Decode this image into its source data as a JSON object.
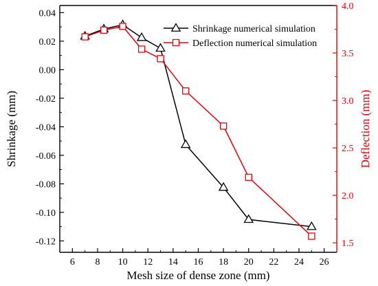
{
  "chart_data": {
    "type": "line",
    "xlabel": "Mesh size of dense zone (mm)",
    "ylabel_left": "Shrinkage (mm)",
    "ylabel_right": "Deflection (mm)",
    "xlim": [
      5,
      27
    ],
    "xticks": [
      6,
      8,
      10,
      12,
      14,
      16,
      18,
      20,
      22,
      24,
      26
    ],
    "ylim_left": [
      -0.128,
      0.045
    ],
    "yticks_left": [
      0.04,
      0.02,
      0.0,
      -0.02,
      -0.04,
      -0.06,
      -0.08,
      -0.1,
      -0.12
    ],
    "ytick_labels_left": [
      "0.04",
      "0.02",
      "0.00",
      "-0.02",
      "-0.04",
      "-0.06",
      "-0.08",
      "-0.10",
      "-0.12"
    ],
    "ylim_right": [
      1.4,
      4.0
    ],
    "yticks_right": [
      1.5,
      2.0,
      2.5,
      3.0,
      3.5,
      4.0
    ],
    "ytick_labels_right": [
      "1.5",
      "2.0",
      "2.5",
      "3.0",
      "3.5",
      "4.0"
    ],
    "grid": false,
    "legend_position": "top-right",
    "series": [
      {
        "name": "Shrinkage numerical simulation",
        "axis": "left",
        "marker": "triangle",
        "color": "#000000",
        "x": [
          7,
          8.5,
          10,
          11.5,
          13,
          15,
          18,
          20,
          25
        ],
        "y": [
          0.0235,
          0.0285,
          0.0315,
          0.0225,
          0.015,
          -0.0525,
          -0.0825,
          -0.105,
          -0.11
        ]
      },
      {
        "name": "Deflection numerical simulation",
        "axis": "right",
        "marker": "square",
        "color": "#e8000b",
        "x": [
          7,
          8.5,
          10,
          11.5,
          13,
          15,
          18,
          20,
          25
        ],
        "y": [
          3.67,
          3.74,
          3.78,
          3.54,
          3.44,
          3.1,
          2.73,
          2.19,
          1.57
        ]
      }
    ]
  }
}
